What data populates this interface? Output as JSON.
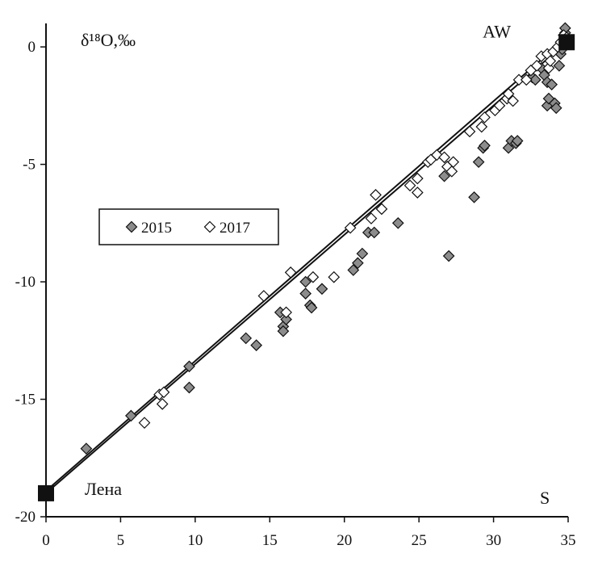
{
  "chart_data": {
    "type": "scatter",
    "ylabel": "δ¹⁸O,‰",
    "xlabel": "S",
    "xlim": [
      0,
      35
    ],
    "ylim": [
      -20,
      1
    ],
    "xticks": [
      "0",
      "5",
      "10",
      "15",
      "20",
      "25",
      "30",
      "35"
    ],
    "yticks": [
      "0",
      "-5",
      "-10",
      "-15",
      "-20"
    ],
    "grid": false,
    "legend_position": "middle-left",
    "series": [
      {
        "name": "2015",
        "marker": "diamond-filled",
        "color": "#8c8c8c",
        "points": [
          [
            2.7,
            -17.1
          ],
          [
            5.7,
            -15.7
          ],
          [
            9.6,
            -13.6
          ],
          [
            9.6,
            -14.5
          ],
          [
            13.4,
            -12.4
          ],
          [
            14.1,
            -12.7
          ],
          [
            15.7,
            -11.3
          ],
          [
            15.9,
            -11.9
          ],
          [
            15.9,
            -12.1
          ],
          [
            16.1,
            -11.6
          ],
          [
            17.4,
            -10.0
          ],
          [
            17.4,
            -10.5
          ],
          [
            17.7,
            -11.0
          ],
          [
            17.8,
            -11.1
          ],
          [
            18.5,
            -10.3
          ],
          [
            20.6,
            -9.5
          ],
          [
            20.9,
            -9.2
          ],
          [
            21.2,
            -8.8
          ],
          [
            21.6,
            -7.9
          ],
          [
            22.0,
            -7.9
          ],
          [
            23.6,
            -7.5
          ],
          [
            26.7,
            -5.5
          ],
          [
            27.0,
            -8.9
          ],
          [
            28.7,
            -6.4
          ],
          [
            29.0,
            -4.9
          ],
          [
            29.3,
            -4.3
          ],
          [
            29.4,
            -4.2
          ],
          [
            31.0,
            -4.3
          ],
          [
            31.2,
            -4.0
          ],
          [
            31.5,
            -4.1
          ],
          [
            31.6,
            -4.0
          ],
          [
            32.6,
            -1.3
          ],
          [
            32.8,
            -1.4
          ],
          [
            33.2,
            -0.9
          ],
          [
            33.4,
            -1.2
          ],
          [
            33.6,
            -1.5
          ],
          [
            33.6,
            -2.5
          ],
          [
            33.7,
            -2.2
          ],
          [
            33.9,
            -1.6
          ],
          [
            34.1,
            -2.4
          ],
          [
            34.2,
            -2.6
          ],
          [
            34.4,
            -0.8
          ],
          [
            34.5,
            -0.3
          ],
          [
            34.6,
            -0.1
          ],
          [
            34.8,
            0.6
          ],
          [
            34.8,
            0.8
          ]
        ]
      },
      {
        "name": "2017",
        "marker": "diamond-open",
        "color": "#ffffff",
        "points": [
          [
            6.6,
            -16.0
          ],
          [
            7.6,
            -14.8
          ],
          [
            7.8,
            -15.2
          ],
          [
            7.9,
            -14.7
          ],
          [
            14.6,
            -10.6
          ],
          [
            16.1,
            -11.3
          ],
          [
            16.4,
            -9.6
          ],
          [
            17.9,
            -9.8
          ],
          [
            19.3,
            -9.8
          ],
          [
            20.4,
            -7.7
          ],
          [
            21.8,
            -7.3
          ],
          [
            22.1,
            -6.3
          ],
          [
            22.5,
            -6.9
          ],
          [
            24.4,
            -5.9
          ],
          [
            24.9,
            -6.2
          ],
          [
            24.9,
            -5.6
          ],
          [
            25.6,
            -4.9
          ],
          [
            25.8,
            -4.8
          ],
          [
            26.2,
            -4.6
          ],
          [
            26.7,
            -4.7
          ],
          [
            26.9,
            -5.1
          ],
          [
            27.2,
            -5.3
          ],
          [
            27.3,
            -4.9
          ],
          [
            28.4,
            -3.6
          ],
          [
            29.2,
            -3.4
          ],
          [
            29.4,
            -3.0
          ],
          [
            30.1,
            -2.7
          ],
          [
            30.4,
            -2.5
          ],
          [
            30.9,
            -2.2
          ],
          [
            31.0,
            -2.0
          ],
          [
            31.3,
            -2.3
          ],
          [
            31.7,
            -1.4
          ],
          [
            32.2,
            -1.4
          ],
          [
            32.5,
            -1.0
          ],
          [
            32.9,
            -0.8
          ],
          [
            33.2,
            -0.4
          ],
          [
            33.6,
            -0.3
          ],
          [
            33.7,
            -0.9
          ],
          [
            33.8,
            -0.6
          ],
          [
            34.0,
            -0.2
          ],
          [
            34.3,
            0.0
          ],
          [
            34.5,
            0.2
          ],
          [
            34.7,
            0.5
          ],
          [
            34.9,
            0.4
          ],
          [
            34.9,
            0.2
          ]
        ]
      }
    ],
    "endmembers": [
      {
        "label": "Лена",
        "x": 0,
        "y": -19.0
      },
      {
        "label": "AW",
        "x": 34.9,
        "y": 0.2
      }
    ],
    "regression_lines": [
      {
        "x": [
          0,
          34.9
        ],
        "y": [
          -19.0,
          0.2
        ]
      },
      {
        "x": [
          0,
          34.9
        ],
        "y": [
          -18.9,
          0.4
        ]
      }
    ],
    "legend": [
      "2015",
      "2017"
    ]
  }
}
